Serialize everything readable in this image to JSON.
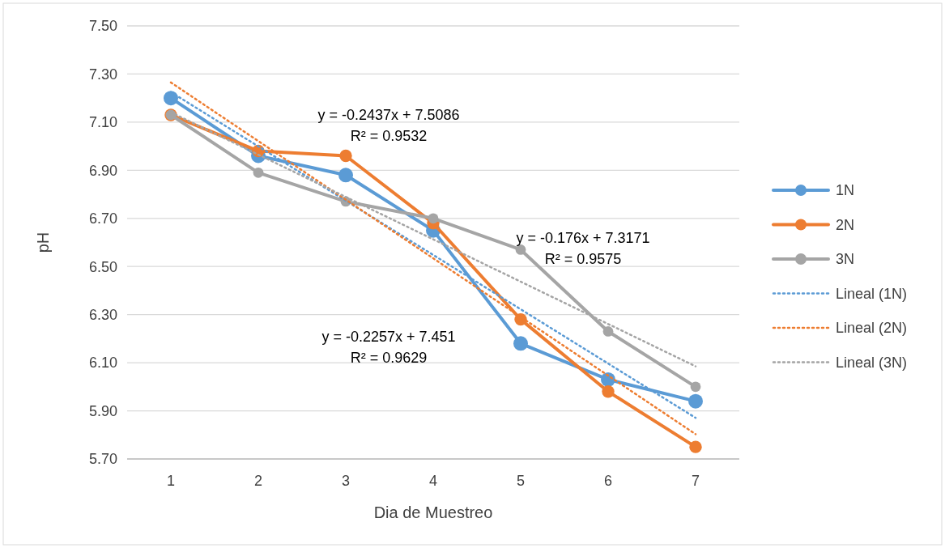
{
  "chart_data": {
    "type": "line",
    "xlabel": "Dia de Muestreo",
    "ylabel": "pH",
    "categories": [
      "1",
      "2",
      "3",
      "4",
      "5",
      "6",
      "7"
    ],
    "ylim": [
      5.7,
      7.5
    ],
    "yticks": [
      {
        "value": 5.7,
        "label": "5.70"
      },
      {
        "value": 5.9,
        "label": "5.90"
      },
      {
        "value": 6.1,
        "label": "6.10"
      },
      {
        "value": 6.3,
        "label": "6.30"
      },
      {
        "value": 6.5,
        "label": "6.50"
      },
      {
        "value": 6.7,
        "label": "6.70"
      },
      {
        "value": 6.9,
        "label": "6.90"
      },
      {
        "value": 7.1,
        "label": "7.10"
      },
      {
        "value": 7.3,
        "label": "7.30"
      },
      {
        "value": 7.5,
        "label": "7.50"
      }
    ],
    "grid": "y",
    "legend": "right",
    "series": [
      {
        "name": "1N",
        "color": "#5b9bd5",
        "marker": "circle",
        "values": [
          7.2,
          6.96,
          6.88,
          6.65,
          6.18,
          6.03,
          5.94
        ]
      },
      {
        "name": "2N",
        "color": "#ed7d31",
        "marker": "circle",
        "values": [
          7.13,
          6.98,
          6.96,
          6.68,
          6.28,
          5.98,
          5.75
        ]
      },
      {
        "name": "3N",
        "color": "#a5a5a5",
        "marker": "circle",
        "values": [
          7.13,
          6.89,
          6.77,
          6.7,
          6.57,
          6.23,
          6.0
        ]
      },
      {
        "name": "Lineal (1N)",
        "color": "#5b9bd5",
        "marker": "none",
        "line_style": "dotted",
        "x": [
          "1",
          "7"
        ],
        "values": [
          7.225,
          5.871
        ]
      },
      {
        "name": "Lineal (2N)",
        "color": "#ed7d31",
        "marker": "none",
        "line_style": "dotted",
        "x": [
          "1",
          "7"
        ],
        "values": [
          7.265,
          5.803
        ]
      },
      {
        "name": "Lineal (3N)",
        "color": "#a5a5a5",
        "marker": "none",
        "line_style": "dotted",
        "x": [
          "1",
          "7"
        ],
        "values": [
          7.141,
          6.085
        ]
      }
    ],
    "annotations": [
      "y = -0.2257x + 7.451\nR² = 0.9629",
      "y = -0.2437x + 7.5086\nR² = 0.9532",
      "y = -0.176x + 7.3171\nR² = 0.9575"
    ]
  }
}
